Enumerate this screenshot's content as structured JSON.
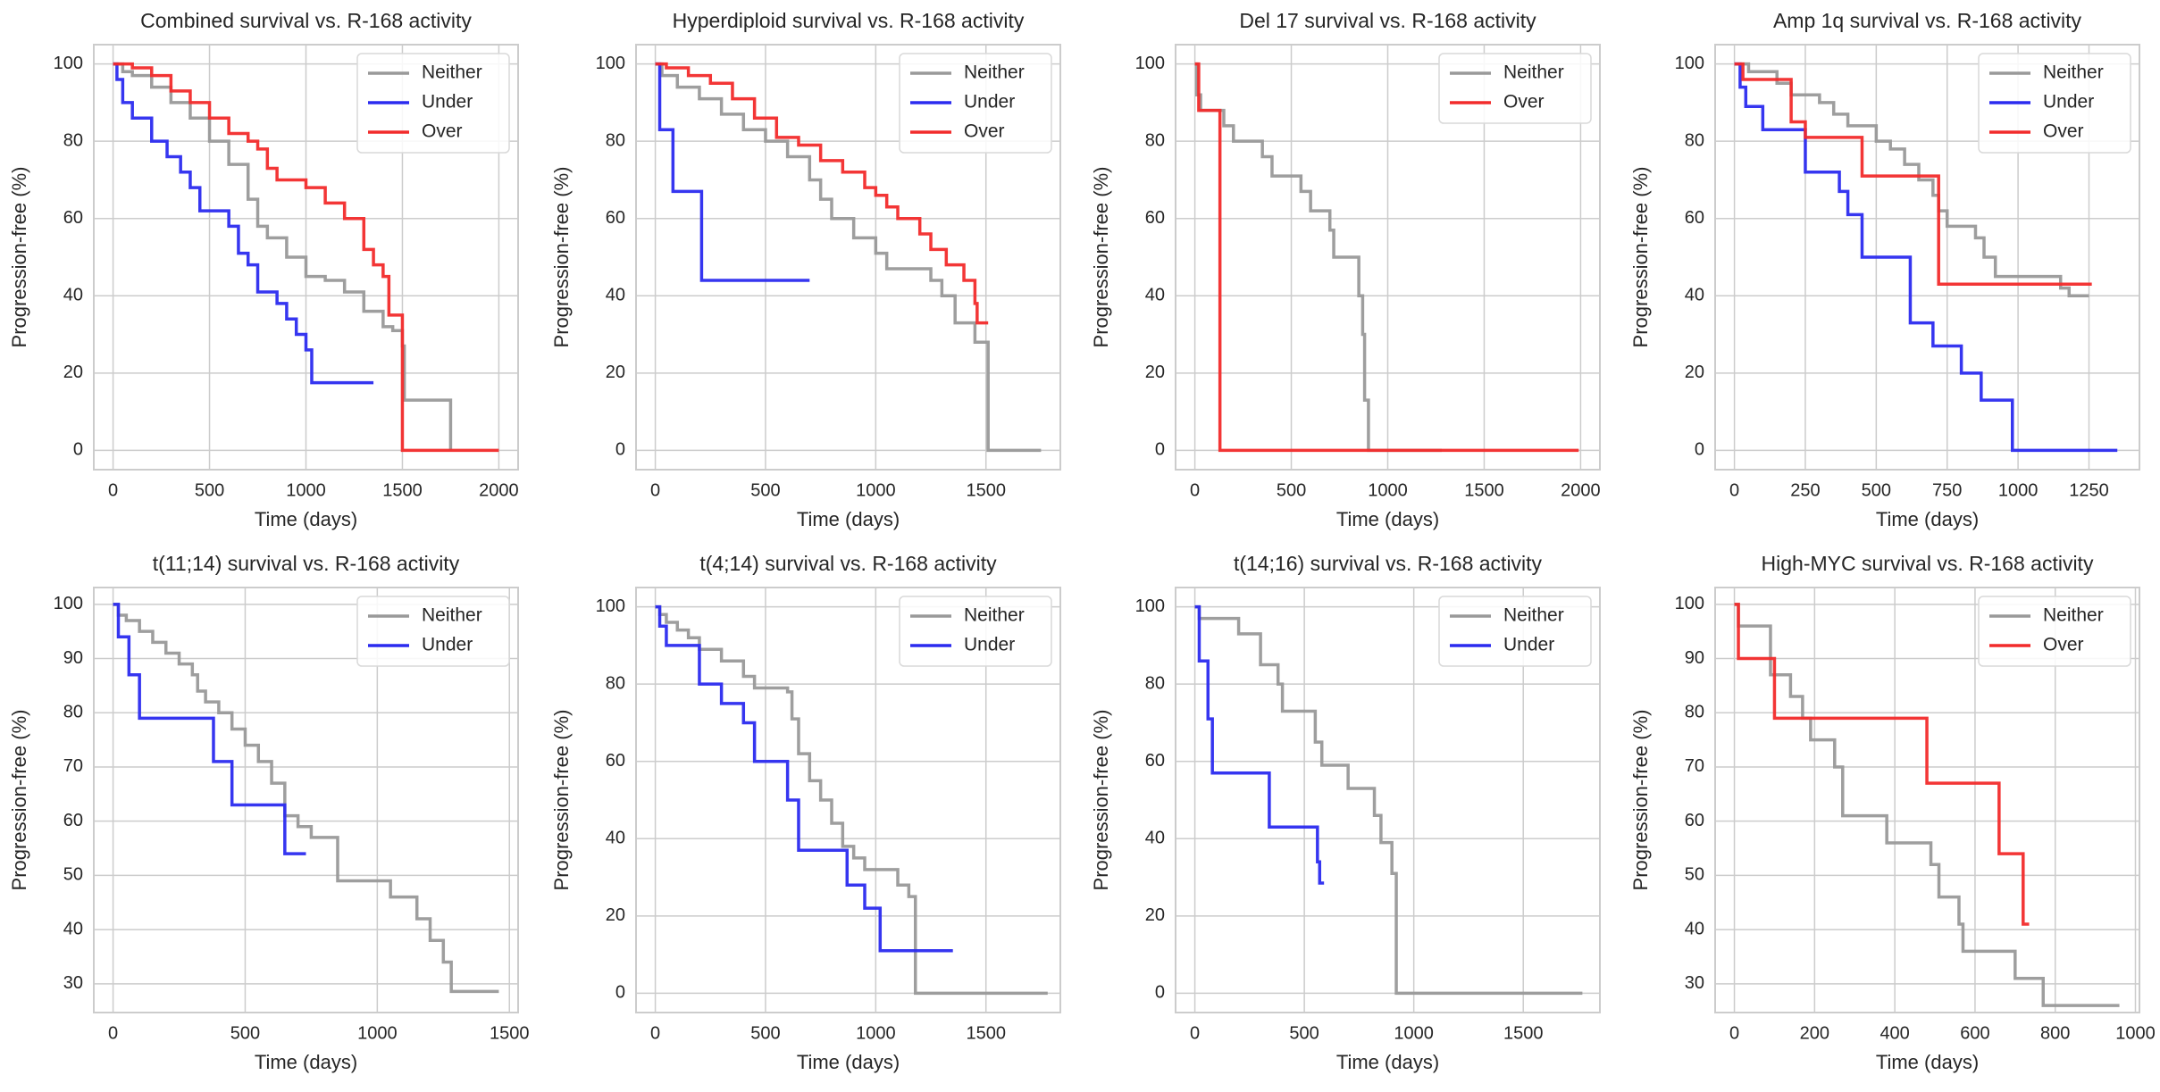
{
  "chart_data": [
    {
      "type": "line",
      "step": true,
      "title": "Combined survival vs. R-168 activity",
      "x_label": "Time (days)",
      "y_label": "Progression-free (%)",
      "xlim": [
        -100,
        2100
      ],
      "ylim": [
        -5,
        105
      ],
      "xticks": [
        0,
        500,
        1000,
        1500,
        2000
      ],
      "yticks": [
        0,
        20,
        40,
        60,
        80,
        100
      ],
      "grid": true,
      "legend": "upper right",
      "series": [
        {
          "name": "Neither",
          "color": "#999999",
          "x": [
            0,
            50,
            100,
            200,
            300,
            400,
            500,
            600,
            700,
            750,
            800,
            900,
            1000,
            1100,
            1200,
            1300,
            1400,
            1450,
            1500,
            1510,
            1750
          ],
          "values": [
            100,
            98,
            97,
            94,
            90,
            86,
            80,
            74,
            65,
            58,
            55,
            50,
            45,
            44,
            41,
            36,
            32,
            31,
            27,
            13,
            0
          ]
        },
        {
          "name": "Under",
          "color": "#2b2bef",
          "x": [
            0,
            20,
            50,
            100,
            200,
            280,
            350,
            400,
            450,
            600,
            650,
            700,
            750,
            850,
            900,
            950,
            1000,
            1030,
            1350
          ],
          "values": [
            100,
            96,
            90,
            86,
            80,
            76,
            72,
            68,
            62,
            58,
            51,
            48,
            41,
            38,
            34,
            30,
            26,
            17.5,
            17.5
          ]
        },
        {
          "name": "Over",
          "color": "#f22b2b",
          "x": [
            0,
            100,
            200,
            300,
            400,
            500,
            600,
            700,
            750,
            800,
            850,
            1000,
            1100,
            1200,
            1300,
            1350,
            1400,
            1430,
            1500,
            2000
          ],
          "values": [
            100,
            99,
            97,
            93,
            90,
            86,
            82,
            80,
            78,
            73,
            70,
            68,
            64,
            60,
            52,
            48,
            45,
            35,
            0,
            0
          ]
        }
      ]
    },
    {
      "type": "line",
      "step": true,
      "title": "Hyperdiploid survival vs. R-168 activity",
      "x_label": "Time (days)",
      "y_label": "Progression-free (%)",
      "xlim": [
        -87.5,
        1837.5
      ],
      "ylim": [
        -5,
        105
      ],
      "xticks": [
        0,
        500,
        1000,
        1500
      ],
      "yticks": [
        0,
        20,
        40,
        60,
        80,
        100
      ],
      "grid": true,
      "legend": "upper right",
      "series": [
        {
          "name": "Neither",
          "color": "#999999",
          "x": [
            0,
            30,
            100,
            200,
            300,
            400,
            500,
            600,
            700,
            750,
            800,
            900,
            1000,
            1050,
            1250,
            1300,
            1360,
            1450,
            1510,
            1750
          ],
          "values": [
            100,
            97,
            94,
            91,
            87,
            83,
            80,
            76,
            70,
            65,
            60,
            55,
            51,
            47,
            44,
            40,
            33,
            28,
            0,
            0
          ]
        },
        {
          "name": "Under",
          "color": "#2b2bef",
          "x": [
            0,
            20,
            80,
            210,
            700
          ],
          "values": [
            100,
            83,
            67,
            44,
            44
          ]
        },
        {
          "name": "Over",
          "color": "#f22b2b",
          "x": [
            0,
            50,
            150,
            250,
            350,
            450,
            550,
            650,
            750,
            850,
            950,
            1000,
            1050,
            1100,
            1200,
            1250,
            1320,
            1400,
            1450,
            1460,
            1510
          ],
          "values": [
            100,
            99,
            97,
            95,
            91,
            86,
            81,
            79,
            75,
            72,
            68,
            66,
            63,
            60,
            56,
            52,
            48,
            44,
            38,
            33,
            33
          ]
        }
      ]
    },
    {
      "type": "line",
      "step": true,
      "title": "Del 17 survival vs. R-168 activity",
      "x_label": "Time (days)",
      "y_label": "Progression-free (%)",
      "xlim": [
        -100,
        2100
      ],
      "ylim": [
        -5,
        105
      ],
      "xticks": [
        0,
        500,
        1000,
        1500,
        2000
      ],
      "yticks": [
        0,
        20,
        40,
        60,
        80,
        100
      ],
      "grid": true,
      "legend": "upper right",
      "series": [
        {
          "name": "Neither",
          "color": "#999999",
          "x": [
            0,
            10,
            30,
            150,
            200,
            350,
            400,
            550,
            600,
            700,
            720,
            850,
            870,
            880,
            900,
            1280
          ],
          "values": [
            100,
            92,
            88,
            84,
            80,
            76,
            71,
            67,
            62,
            57,
            50,
            40,
            30,
            13,
            0,
            0
          ]
        },
        {
          "name": "Over",
          "color": "#f22b2b",
          "x": [
            0,
            20,
            130,
            1990
          ],
          "values": [
            100,
            88,
            0,
            0
          ]
        }
      ]
    },
    {
      "type": "line",
      "step": true,
      "title": "Amp 1q survival vs. R-168 activity",
      "x_label": "Time (days)",
      "y_label": "Progression-free (%)",
      "xlim": [
        -68,
        1428
      ],
      "ylim": [
        -5,
        105
      ],
      "xticks": [
        0,
        250,
        500,
        750,
        1000,
        1250
      ],
      "yticks": [
        0,
        20,
        40,
        60,
        80,
        100
      ],
      "grid": true,
      "legend": "upper right",
      "series": [
        {
          "name": "Neither",
          "color": "#999999",
          "x": [
            0,
            50,
            150,
            200,
            300,
            350,
            400,
            500,
            550,
            600,
            650,
            700,
            720,
            750,
            850,
            880,
            920,
            1150,
            1180,
            1250
          ],
          "values": [
            100,
            98,
            95,
            92,
            90,
            87,
            84,
            80,
            78,
            74,
            70,
            66,
            62,
            58,
            55,
            50,
            45,
            42,
            40,
            40
          ]
        },
        {
          "name": "Under",
          "color": "#2b2bef",
          "x": [
            0,
            20,
            40,
            100,
            250,
            370,
            400,
            450,
            620,
            700,
            800,
            870,
            980,
            1350
          ],
          "values": [
            100,
            94,
            89,
            83,
            72,
            67,
            61,
            50,
            33,
            27,
            20,
            13,
            0,
            0
          ]
        },
        {
          "name": "Over",
          "color": "#f22b2b",
          "x": [
            0,
            30,
            200,
            250,
            450,
            720,
            1260
          ],
          "values": [
            100,
            96,
            85,
            81,
            71,
            43,
            43
          ]
        }
      ]
    },
    {
      "type": "line",
      "step": true,
      "title": "t(11;14) survival vs. R-168 activity",
      "x_label": "Time (days)",
      "y_label": "Progression-free (%)",
      "xlim": [
        -73,
        1533
      ],
      "ylim": [
        24.7,
        103.1
      ],
      "xticks": [
        0,
        500,
        1000,
        1500
      ],
      "yticks": [
        30,
        40,
        50,
        60,
        70,
        80,
        90,
        100
      ],
      "grid": true,
      "legend": "upper right",
      "series": [
        {
          "name": "Neither",
          "color": "#999999",
          "x": [
            0,
            20,
            50,
            100,
            150,
            200,
            250,
            300,
            320,
            350,
            400,
            450,
            500,
            550,
            600,
            650,
            700,
            750,
            850,
            1050,
            1150,
            1200,
            1250,
            1280,
            1460
          ],
          "values": [
            100,
            98,
            97,
            95,
            93,
            91,
            89,
            87,
            84,
            82,
            80,
            77,
            74,
            71,
            67,
            61,
            59,
            57,
            49,
            46,
            42,
            38,
            34,
            28.6,
            28.6
          ]
        },
        {
          "name": "Under",
          "color": "#2b2bef",
          "x": [
            0,
            20,
            60,
            100,
            380,
            450,
            650,
            730
          ],
          "values": [
            100,
            94,
            87,
            79,
            71,
            63,
            54,
            54
          ]
        }
      ]
    },
    {
      "type": "line",
      "step": true,
      "title": "t(4;14) survival vs. R-168 activity",
      "x_label": "Time (days)",
      "y_label": "Progression-free (%)",
      "xlim": [
        -87.5,
        1837.5
      ],
      "ylim": [
        -5,
        105
      ],
      "xticks": [
        0,
        500,
        1000,
        1500
      ],
      "yticks": [
        0,
        20,
        40,
        60,
        80,
        100
      ],
      "grid": true,
      "legend": "upper right",
      "series": [
        {
          "name": "Neither",
          "color": "#999999",
          "x": [
            0,
            20,
            50,
            100,
            150,
            200,
            300,
            400,
            450,
            600,
            620,
            650,
            700,
            750,
            800,
            850,
            900,
            950,
            1100,
            1150,
            1180,
            1780
          ],
          "values": [
            100,
            98,
            96,
            94,
            92,
            89,
            86,
            82,
            79,
            78,
            71,
            62,
            55,
            50,
            44,
            38,
            35,
            32,
            28,
            25,
            0,
            0
          ]
        },
        {
          "name": "Under",
          "color": "#2b2bef",
          "x": [
            0,
            20,
            50,
            200,
            300,
            400,
            450,
            600,
            650,
            870,
            950,
            1020,
            1350
          ],
          "values": [
            100,
            95,
            90,
            80,
            75,
            70,
            60,
            50,
            37,
            28,
            22,
            11,
            11
          ]
        }
      ]
    },
    {
      "type": "line",
      "step": true,
      "title": "t(14;16) survival vs. R-168 activity",
      "x_label": "Time (days)",
      "y_label": "Progression-free (%)",
      "xlim": [
        -88,
        1850
      ],
      "ylim": [
        -5,
        105
      ],
      "xticks": [
        0,
        500,
        1000,
        1500
      ],
      "yticks": [
        0,
        20,
        40,
        60,
        80,
        100
      ],
      "grid": true,
      "legend": "upper right",
      "series": [
        {
          "name": "Neither",
          "color": "#999999",
          "x": [
            0,
            20,
            200,
            300,
            380,
            400,
            550,
            580,
            700,
            820,
            850,
            900,
            920,
            1770
          ],
          "values": [
            100,
            97,
            93,
            85,
            80,
            73,
            65,
            59,
            53,
            46,
            39,
            31,
            0,
            0
          ]
        },
        {
          "name": "Under",
          "color": "#2b2bef",
          "x": [
            0,
            20,
            60,
            80,
            340,
            560,
            570,
            590
          ],
          "values": [
            100,
            86,
            71,
            57,
            43,
            34,
            28.5,
            28.5
          ]
        }
      ]
    },
    {
      "type": "line",
      "step": true,
      "title": "High-MYC survival vs. R-168 activity",
      "x_label": "Time (days)",
      "y_label": "Progression-free (%)",
      "xlim": [
        -48,
        1010
      ],
      "ylim": [
        24.7,
        103.1
      ],
      "xticks": [
        0,
        200,
        400,
        600,
        800,
        1000
      ],
      "yticks": [
        30,
        40,
        50,
        60,
        70,
        80,
        90,
        100
      ],
      "grid": true,
      "legend": "upper right",
      "series": [
        {
          "name": "Neither",
          "color": "#999999",
          "x": [
            0,
            10,
            90,
            140,
            170,
            190,
            250,
            270,
            380,
            490,
            510,
            560,
            570,
            700,
            770,
            960
          ],
          "values": [
            100,
            96,
            87,
            83,
            79,
            75,
            70,
            61,
            56,
            52,
            46,
            41,
            36,
            31,
            26,
            26
          ]
        },
        {
          "name": "Over",
          "color": "#f22b2b",
          "x": [
            0,
            10,
            100,
            480,
            660,
            720,
            735
          ],
          "values": [
            100,
            90,
            79,
            67,
            54,
            41,
            41
          ]
        }
      ]
    }
  ]
}
